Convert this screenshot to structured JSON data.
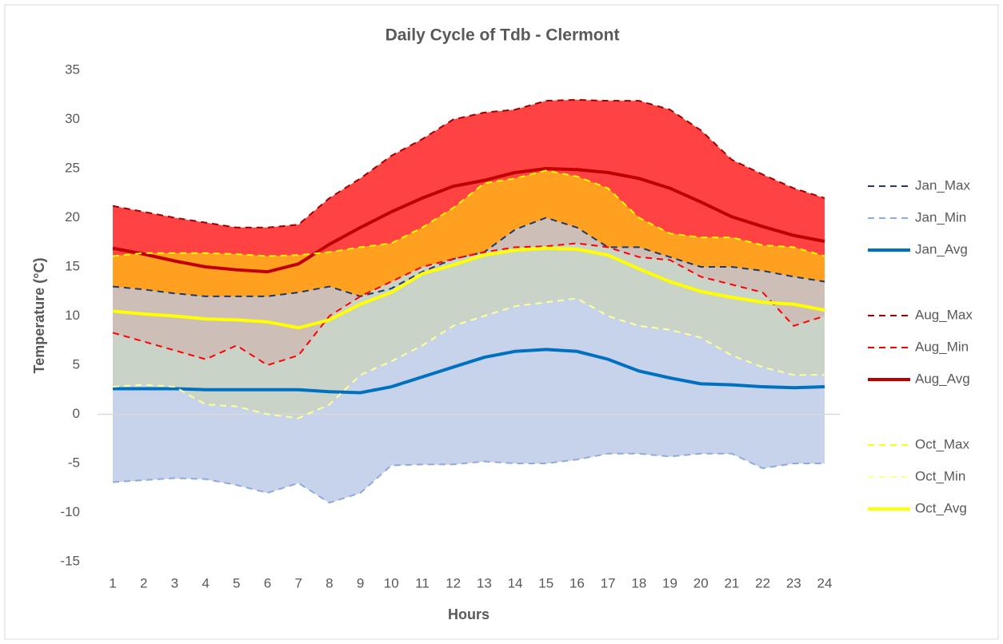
{
  "chart_data": {
    "type": "line",
    "title": "Daily Cycle of Tdb - Clermont",
    "x_label": "Hours",
    "y_label": "Temperature (°C)",
    "categories": [
      1,
      2,
      3,
      4,
      5,
      6,
      7,
      8,
      9,
      10,
      11,
      12,
      13,
      14,
      15,
      16,
      17,
      18,
      19,
      20,
      21,
      22,
      23,
      24
    ],
    "ylim": [
      -15,
      35
    ],
    "yticks": [
      -15,
      -10,
      -5,
      0,
      5,
      10,
      15,
      20,
      25,
      30,
      35
    ],
    "series": [
      {
        "name": "Jan_Max",
        "color": "#203864",
        "dash": true,
        "fill": "#cdbfb7",
        "values": [
          13,
          12.7,
          12.3,
          12,
          12,
          12,
          12.4,
          13,
          12,
          12.8,
          14.5,
          15.8,
          16.5,
          18.8,
          20,
          19,
          17,
          17,
          16,
          15,
          15,
          14.6,
          14,
          13.5
        ]
      },
      {
        "name": "Jan_Min",
        "color": "#8faadc",
        "dash": true,
        "values": [
          -6.9,
          -6.7,
          -6.5,
          -6.6,
          -7.2,
          -8,
          -7,
          -9,
          -8,
          -5.2,
          -5.1,
          -5.1,
          -4.8,
          -5,
          -5,
          -4.6,
          -4,
          -4,
          -4.3,
          -4,
          -4,
          -5.5,
          -5,
          -5
        ]
      },
      {
        "name": "Jan_Avg",
        "color": "#0070c0",
        "dash": false,
        "values": [
          2.6,
          2.6,
          2.6,
          2.5,
          2.5,
          2.5,
          2.5,
          2.3,
          2.2,
          2.8,
          3.8,
          4.8,
          5.8,
          6.4,
          6.6,
          6.4,
          5.6,
          4.4,
          3.7,
          3.1,
          3,
          2.8,
          2.7,
          2.8
        ]
      },
      {
        "name": "Aug_Max",
        "color": "#a00000",
        "dash": true,
        "fill": "#ff4242",
        "values": [
          21.2,
          20.6,
          20,
          19.5,
          19,
          19,
          19.3,
          22,
          24,
          26.3,
          28,
          30,
          30.7,
          31,
          31.9,
          32,
          31.9,
          31.9,
          31,
          28.9,
          25.9,
          24.4,
          23,
          22
        ]
      },
      {
        "name": "Aug_Min",
        "color": "#ff0000",
        "dash": true,
        "fill": "#c9d3c8",
        "values": [
          8.3,
          7.4,
          6.5,
          5.6,
          7,
          5,
          6,
          10,
          12,
          13.5,
          15,
          15.8,
          16.5,
          17,
          17.1,
          17.4,
          17,
          16,
          15.7,
          14,
          13.2,
          12.4,
          9,
          10
        ]
      },
      {
        "name": "Aug_Avg",
        "color": "#c00000",
        "dash": false,
        "values": [
          16.9,
          16.3,
          15.6,
          15,
          14.7,
          14.5,
          15.3,
          17.3,
          19,
          20.6,
          22,
          23.2,
          23.8,
          24.6,
          25,
          24.9,
          24.6,
          24,
          23,
          21.6,
          20.1,
          19.1,
          18.2,
          17.6
        ]
      },
      {
        "name": "Oct_Max",
        "color": "#ffff00",
        "dash": true,
        "fill": "#ffa020",
        "values": [
          16.1,
          16.4,
          16.4,
          16.4,
          16.3,
          16.1,
          16.2,
          16.5,
          17,
          17.4,
          19,
          21,
          23.5,
          24,
          24.8,
          24.2,
          23,
          20,
          18.4,
          18,
          18,
          17.2,
          17,
          16.1
        ]
      },
      {
        "name": "Oct_Min",
        "color": "#ffff99",
        "dash": true,
        "fill": "#c6d3ea",
        "values": [
          2.8,
          3,
          2.8,
          1,
          0.8,
          0,
          -0.4,
          1,
          4,
          5.4,
          7,
          9,
          10,
          11,
          11.4,
          11.8,
          10,
          9,
          8.6,
          7.8,
          6,
          4.8,
          4,
          4
        ]
      },
      {
        "name": "Oct_Avg",
        "color": "#ffff00",
        "dash": false,
        "values": [
          10.5,
          10.2,
          10,
          9.7,
          9.6,
          9.4,
          8.8,
          9.6,
          11.2,
          12.4,
          14.3,
          15.2,
          16.2,
          16.7,
          16.9,
          16.8,
          16.2,
          14.8,
          13.5,
          12.5,
          11.9,
          11.4,
          11.2,
          10.6
        ]
      }
    ]
  }
}
